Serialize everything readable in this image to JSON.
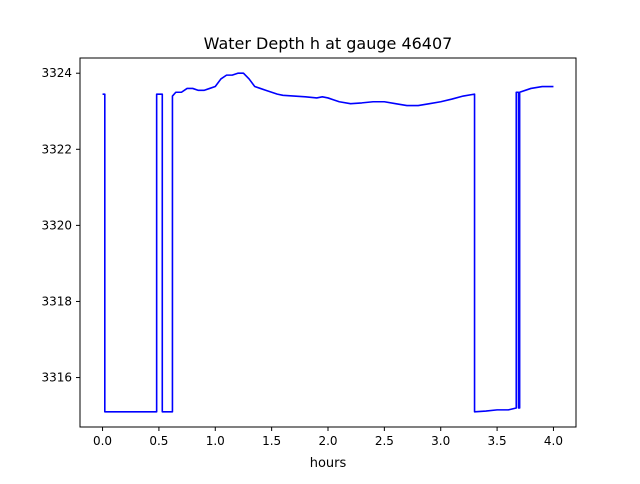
{
  "chart_data": {
    "type": "line",
    "title": "Water Depth h at gauge 46407",
    "xlabel": "hours",
    "ylabel": "",
    "xlim": [
      -0.2,
      4.2
    ],
    "ylim": [
      3314.7,
      3324.4
    ],
    "xticks": [
      0.0,
      0.5,
      1.0,
      1.5,
      2.0,
      2.5,
      3.0,
      3.5,
      4.0
    ],
    "xtick_labels": [
      "0.0",
      "0.5",
      "1.0",
      "1.5",
      "2.0",
      "2.5",
      "3.0",
      "3.5",
      "4.0"
    ],
    "yticks": [
      3316,
      3318,
      3320,
      3322,
      3324
    ],
    "ytick_labels": [
      "3316",
      "3318",
      "3320",
      "3322",
      "3324"
    ],
    "grid": false,
    "series": [
      {
        "color": "#0000ff",
        "x": [
          0.0,
          0.02,
          0.02,
          0.1,
          0.2,
          0.3,
          0.4,
          0.48,
          0.48,
          0.53,
          0.53,
          0.55,
          0.6,
          0.62,
          0.62,
          0.65,
          0.7,
          0.75,
          0.8,
          0.85,
          0.9,
          0.95,
          1.0,
          1.05,
          1.1,
          1.15,
          1.2,
          1.25,
          1.3,
          1.35,
          1.4,
          1.45,
          1.5,
          1.55,
          1.6,
          1.7,
          1.8,
          1.9,
          1.95,
          2.0,
          2.05,
          2.1,
          2.2,
          2.3,
          2.4,
          2.5,
          2.6,
          2.7,
          2.8,
          2.9,
          3.0,
          3.1,
          3.2,
          3.3,
          3.3,
          3.4,
          3.5,
          3.6,
          3.67,
          3.67,
          3.69,
          3.69,
          3.7,
          3.7,
          3.8,
          3.9,
          4.0
        ],
        "y": [
          3323.45,
          3323.45,
          3315.1,
          3315.1,
          3315.1,
          3315.1,
          3315.1,
          3315.1,
          3323.45,
          3323.45,
          3315.1,
          3315.1,
          3315.1,
          3315.1,
          3323.4,
          3323.5,
          3323.5,
          3323.6,
          3323.6,
          3323.55,
          3323.55,
          3323.6,
          3323.65,
          3323.85,
          3323.95,
          3323.95,
          3324.0,
          3324.0,
          3323.85,
          3323.65,
          3323.6,
          3323.55,
          3323.5,
          3323.45,
          3323.42,
          3323.4,
          3323.38,
          3323.35,
          3323.38,
          3323.35,
          3323.3,
          3323.25,
          3323.2,
          3323.22,
          3323.25,
          3323.25,
          3323.2,
          3323.15,
          3323.15,
          3323.2,
          3323.25,
          3323.32,
          3323.4,
          3323.45,
          3315.1,
          3315.12,
          3315.15,
          3315.15,
          3315.2,
          3323.5,
          3323.5,
          3315.2,
          3315.2,
          3323.5,
          3323.6,
          3323.65,
          3323.65
        ]
      }
    ]
  }
}
